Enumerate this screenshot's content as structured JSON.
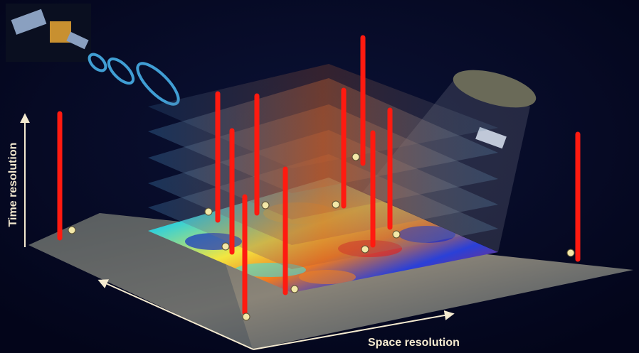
{
  "axes": {
    "time": "Time resolution",
    "space": "Space resolution"
  }
}
